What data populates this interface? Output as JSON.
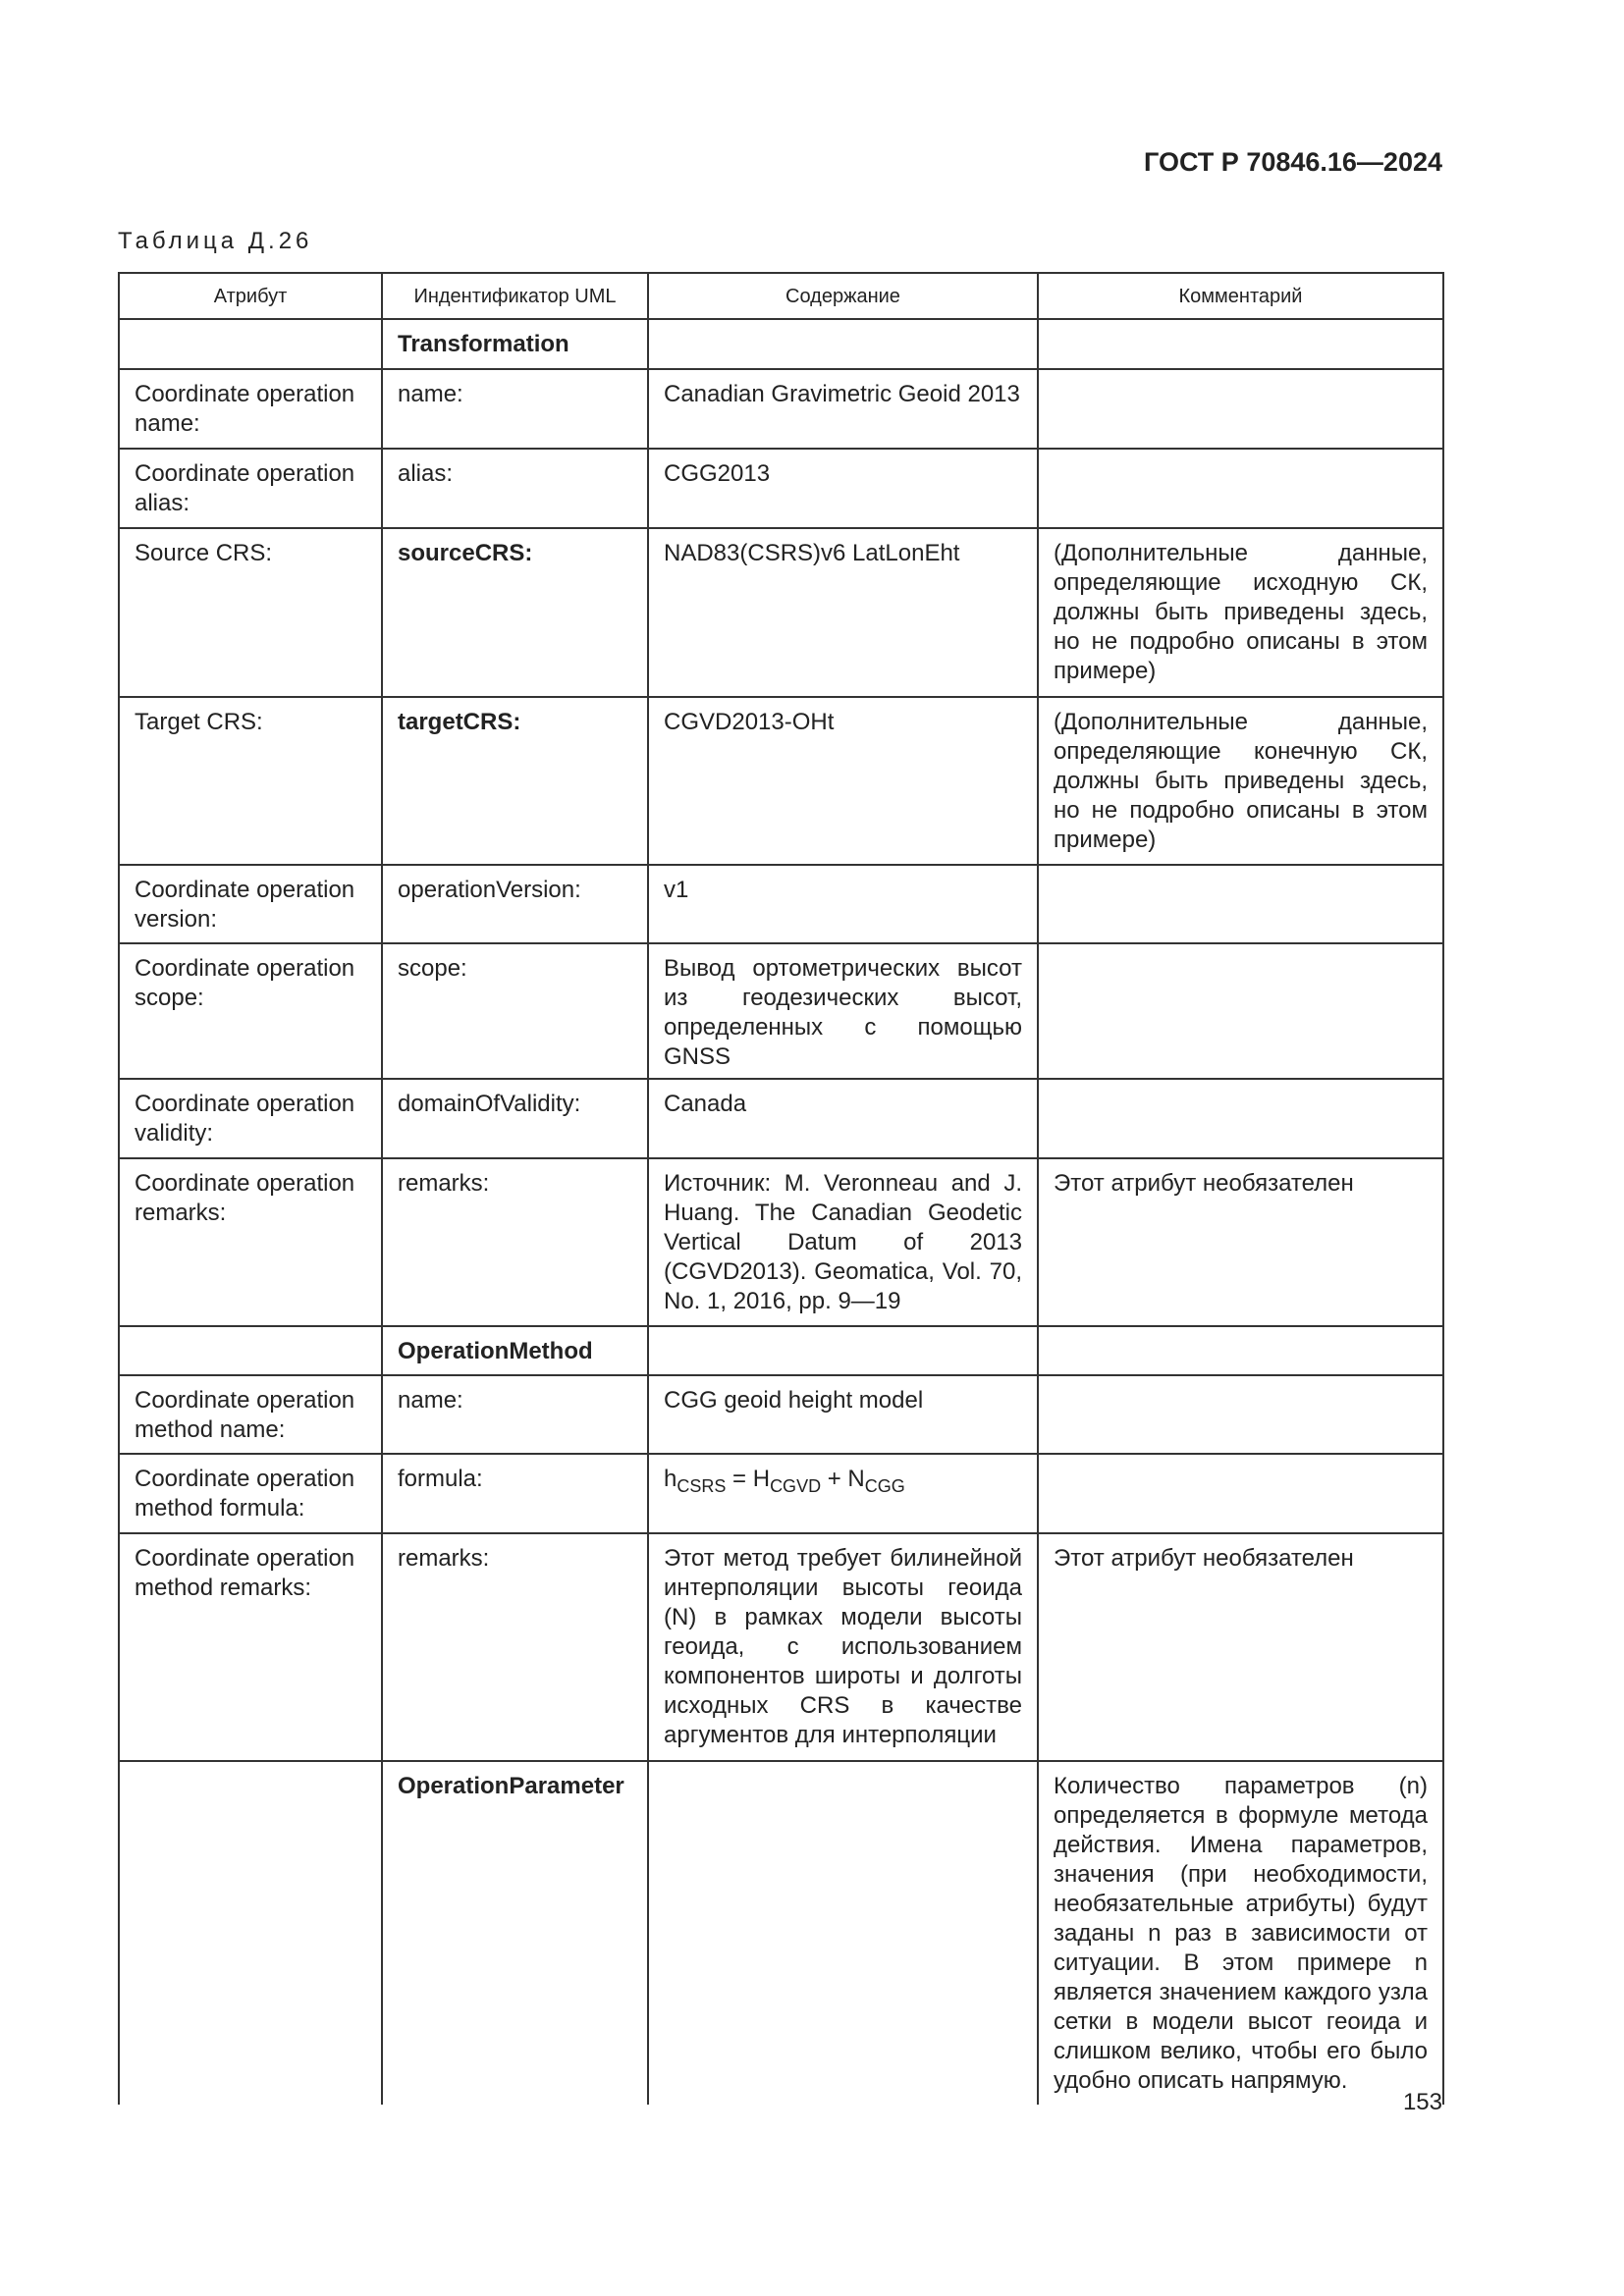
{
  "header": {
    "doc_id": "ГОСТ Р 70846.16—2024"
  },
  "table": {
    "caption": "Таблица Д.26",
    "columns": [
      "Атрибут",
      "Индентификатор UML",
      "Содержание",
      "Комментарий"
    ],
    "rows": [
      [
        null,
        "Transformation",
        null,
        null
      ],
      [
        "Coordinate operation name:",
        "name:",
        "Canadian Gravimetric Geoid 2013",
        null
      ],
      [
        "Coordinate operation alias:",
        "alias:",
        "CGG2013",
        null
      ],
      [
        "Source CRS:",
        "sourceCRS:",
        "NAD83(CSRS)v6 LatLonEht",
        "(Дополнительные данные, определяющие исходную СК, должны быть приведены здесь, но не подробно описаны в этом примере)"
      ],
      [
        "Target CRS:",
        "targetCRS:",
        "CGVD2013-OHt",
        "(Дополнительные данные, определяющие конечную СК, должны быть приведены здесь, но не подробно описаны в этом примере)"
      ],
      [
        "Coordinate operation version:",
        "operationVersion:",
        "v1",
        null
      ],
      [
        "Coordinate operation scope:",
        "scope:",
        "Вывод ортометрических высот из геодезических высот, определенных с помощью GNSS",
        null
      ],
      [
        "Coordinate operation validity:",
        "domainOfValidity:",
        "Canada",
        null
      ],
      [
        "Coordinate operation remarks:",
        "remarks:",
        "Источник: M. Veronneau and J. Huang. The Canadian Geodetic Vertical Datum of 2013 (CGVD2013). Geomatica, Vol. 70, No. 1, 2016, pp. 9—19",
        "Этот атрибут необязателен"
      ],
      [
        null,
        "OperationMethod",
        null,
        null
      ],
      [
        "Coordinate operation method name:",
        "name:",
        "CGG geoid height model",
        null
      ],
      [
        "Coordinate operation method formula:",
        "formula:",
        [
          "h",
          "CSRS",
          " = H",
          "CGVD",
          " + N",
          "CGG"
        ],
        null
      ],
      [
        "Coordinate operation method remarks:",
        "remarks:",
        "Этот метод требует билинейной интерполяции высоты геоида (N) в рамках модели высоты геоида, с использованием компонентов широты и долготы исходных CRS в качестве аргументов для интерполяции",
        "Этот атрибут необязателен"
      ],
      [
        null,
        "OperationParameter",
        null,
        "Количество параметров (n) определяется в формуле метода действия. Имена параметров, значения (при необходимости, необязательные атрибуты) будут заданы n раз в зависимости от ситуации. В этом примере n является значением каждого узла сетки в модели высот геоида и слишком велико, чтобы его было удобно описать напрямую."
      ]
    ]
  },
  "footer": {
    "page_number": "153"
  }
}
